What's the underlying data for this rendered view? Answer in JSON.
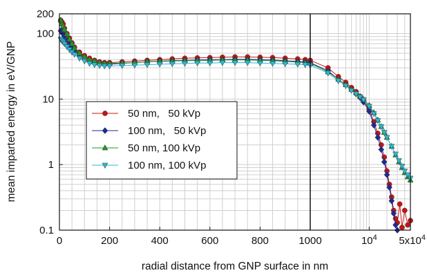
{
  "chart_data": {
    "type": "line",
    "xlabel": "radial distance from GNP surface in nm",
    "ylabel": "mean imparted energy in eV/GNP",
    "yscale": "log",
    "ylim": [
      0.1,
      200
    ],
    "x_linear_range": [
      0,
      1000
    ],
    "x_log_range": [
      1000,
      50000
    ],
    "xticks_linear": [
      "0",
      "200",
      "400",
      "600",
      "800",
      "1000"
    ],
    "xticks_log": [
      "10^4",
      "5x10^4"
    ],
    "yticks": [
      "0.1",
      "1",
      "10",
      "100",
      "200"
    ],
    "grid": true,
    "legend_position": "center-left",
    "series": [
      {
        "name": "50 nm,   50 kVp",
        "marker": "circle",
        "color": "#cc1111",
        "x": [
          5,
          10,
          15,
          20,
          30,
          40,
          50,
          60,
          80,
          100,
          120,
          140,
          160,
          180,
          200,
          250,
          300,
          350,
          400,
          450,
          500,
          550,
          600,
          650,
          700,
          750,
          800,
          850,
          900,
          950,
          980,
          1000,
          2000,
          3000,
          4000,
          5000,
          6000,
          7000,
          8000,
          10000,
          12000,
          14000,
          16000,
          18000,
          20000,
          22000,
          24000,
          26000,
          28000,
          30000,
          33000,
          36000,
          40000,
          45000,
          50000
        ],
        "values": [
          160,
          150,
          140,
          120,
          100,
          85,
          72,
          62,
          52,
          46,
          42,
          39,
          37,
          36,
          36,
          37,
          38,
          39,
          40,
          41,
          42,
          42.5,
          43,
          43.5,
          44,
          44,
          43.5,
          43,
          42,
          41,
          40,
          39,
          30,
          22,
          18,
          15,
          13,
          11,
          9.5,
          7,
          4.5,
          3,
          2,
          1.3,
          0.8,
          0.5,
          0.32,
          0.2,
          0.15,
          0.13,
          0.25,
          0.11,
          0.2,
          0.12,
          0.14
        ]
      },
      {
        "name": "100 nm,   50 kVp",
        "marker": "diamond",
        "color": "#1a2a9a",
        "x": [
          5,
          10,
          15,
          20,
          30,
          40,
          50,
          60,
          80,
          100,
          120,
          140,
          160,
          180,
          200,
          250,
          300,
          350,
          400,
          450,
          500,
          550,
          600,
          650,
          700,
          750,
          800,
          850,
          900,
          950,
          980,
          1000,
          2000,
          3000,
          4000,
          5000,
          6000,
          7000,
          8000,
          10000,
          12000,
          14000,
          16000,
          18000,
          20000,
          22000,
          24000,
          26000,
          28000,
          30000
        ],
        "values": [
          110,
          105,
          98,
          90,
          78,
          68,
          60,
          53,
          45,
          40,
          37,
          35,
          34,
          34,
          34,
          35,
          36,
          37,
          38,
          38.5,
          39,
          39.5,
          40,
          40,
          40.5,
          40.5,
          40,
          39.5,
          38.5,
          37.5,
          37,
          36,
          27,
          20,
          16.5,
          14,
          12,
          10.5,
          9,
          6.5,
          4,
          2.6,
          1.7,
          1.1,
          0.7,
          0.45,
          0.28,
          0.18,
          0.12,
          0.1
        ]
      },
      {
        "name": "50 nm, 100 kVp",
        "marker": "triangle-up",
        "color": "#1d9a2a",
        "x": [
          5,
          10,
          15,
          20,
          30,
          40,
          50,
          60,
          80,
          100,
          120,
          140,
          160,
          180,
          200,
          250,
          300,
          350,
          400,
          450,
          500,
          550,
          600,
          650,
          700,
          750,
          800,
          850,
          900,
          950,
          980,
          1000,
          2000,
          3000,
          4000,
          5000,
          6000,
          7000,
          8000,
          10000,
          12000,
          14000,
          16000,
          18000,
          20000,
          24000,
          28000,
          32000,
          36000,
          40000,
          45000,
          50000
        ],
        "values": [
          160,
          140,
          130,
          115,
          98,
          82,
          70,
          60,
          50,
          44,
          40,
          38,
          36,
          35,
          35,
          35.5,
          36,
          37,
          37.5,
          38,
          38.5,
          39,
          39,
          39.5,
          39.5,
          39.5,
          39,
          38.5,
          37.5,
          36.5,
          36,
          35,
          26,
          20,
          16.5,
          14,
          12.5,
          11,
          10,
          8,
          6.2,
          4.8,
          3.8,
          3.1,
          2.6,
          1.9,
          1.4,
          1.1,
          0.9,
          0.75,
          0.65,
          0.58
        ]
      },
      {
        "name": "100 nm, 100 kVp",
        "marker": "triangle-down",
        "color": "#2cb8d4",
        "x": [
          5,
          10,
          15,
          20,
          30,
          40,
          50,
          60,
          80,
          100,
          120,
          140,
          160,
          180,
          200,
          250,
          300,
          350,
          400,
          450,
          500,
          550,
          600,
          650,
          700,
          750,
          800,
          850,
          900,
          950,
          980,
          1000,
          2000,
          3000,
          4000,
          5000,
          6000,
          7000,
          8000,
          10000,
          12000,
          14000,
          16000,
          18000,
          20000,
          24000,
          28000,
          32000,
          36000,
          40000,
          45000,
          50000
        ],
        "values": [
          82,
          78,
          74,
          70,
          63,
          57,
          52,
          48,
          42,
          38,
          35,
          33.5,
          32.5,
          32,
          32,
          32.5,
          33,
          33.5,
          34,
          34.5,
          35,
          35.5,
          35.5,
          36,
          36,
          36,
          35.5,
          35,
          34.5,
          34,
          33.5,
          33,
          25,
          19,
          16,
          13.5,
          12,
          10.8,
          9.8,
          7.8,
          6,
          4.7,
          3.8,
          3.1,
          2.6,
          1.9,
          1.45,
          1.15,
          0.95,
          0.8,
          0.7,
          0.62
        ]
      }
    ]
  }
}
